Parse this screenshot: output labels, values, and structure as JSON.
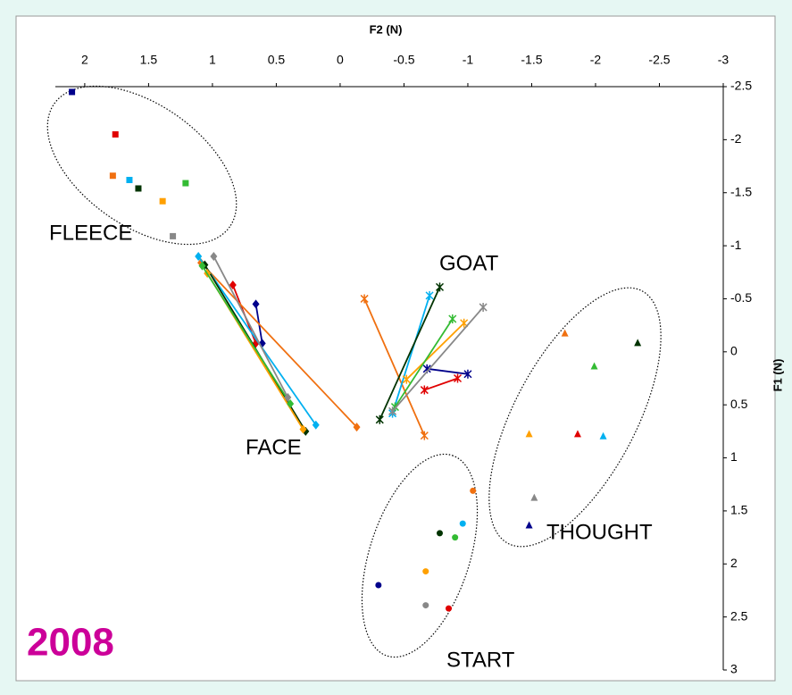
{
  "chart_data": {
    "type": "scatter",
    "x_label": "F2 (N)",
    "y_label": "F1 (N)",
    "xlim": [
      2.23,
      -3
    ],
    "xticks": [
      2,
      1.5,
      1,
      0.5,
      0,
      -0.5,
      -1,
      -1.5,
      -2,
      -2.5,
      -3
    ],
    "ylim": [
      -2.5,
      3
    ],
    "yticks": [
      -2.5,
      -2,
      -1.5,
      -1,
      -0.5,
      0,
      0.5,
      1,
      1.5,
      2,
      2.5,
      3
    ],
    "annotations": [
      "FLEECE",
      "FACE",
      "GOAT",
      "THOUGHT",
      "START",
      "2008"
    ],
    "series": [
      {
        "color": "#00008b",
        "fleece": {
          "x": 2.1,
          "y": -2.45
        },
        "face": {
          "x": [
            0.66,
            0.61
          ],
          "y": [
            -0.45,
            -0.08
          ]
        },
        "goat": {
          "x": [
            -1.0,
            -0.68
          ],
          "y": [
            0.21,
            0.16
          ]
        },
        "thought": {
          "x": -1.48,
          "y": 1.64
        },
        "start": {
          "x": -0.3,
          "y": 2.2
        }
      },
      {
        "color": "#e00000",
        "fleece": {
          "x": 1.76,
          "y": -2.05
        },
        "face": {
          "x": [
            0.84,
            0.66
          ],
          "y": [
            -0.63,
            -0.08
          ]
        },
        "goat": {
          "x": [
            -0.92,
            -0.66
          ],
          "y": [
            0.25,
            0.36
          ]
        },
        "thought": {
          "x": -1.86,
          "y": 0.78
        },
        "start": {
          "x": -0.85,
          "y": 2.42
        }
      },
      {
        "color": "#f07010",
        "fleece": {
          "x": 1.78,
          "y": -1.66
        },
        "face": {
          "x": [
            1.09,
            -0.13
          ],
          "y": [
            -0.84,
            0.71
          ]
        },
        "goat": {
          "x": [
            -0.19,
            -0.66
          ],
          "y": [
            -0.5,
            0.79
          ]
        },
        "thought": {
          "x": -1.76,
          "y": -0.17
        },
        "start": {
          "x": -1.04,
          "y": 1.31
        }
      },
      {
        "color": "#00b0f0",
        "fleece": {
          "x": 1.65,
          "y": -1.62
        },
        "face": {
          "x": [
            1.11,
            0.19
          ],
          "y": [
            -0.9,
            0.69
          ]
        },
        "goat": {
          "x": [
            -0.7,
            -0.41
          ],
          "y": [
            -0.53,
            0.58
          ]
        },
        "thought": {
          "x": -2.06,
          "y": 0.8
        },
        "start": {
          "x": -0.96,
          "y": 1.62
        }
      },
      {
        "color": "#003300",
        "fleece": {
          "x": 1.58,
          "y": -1.54
        },
        "face": {
          "x": [
            1.06,
            0.27
          ],
          "y": [
            -0.82,
            0.75
          ]
        },
        "goat": {
          "x": [
            -0.78,
            -0.31
          ],
          "y": [
            -0.61,
            0.64
          ]
        },
        "thought": {
          "x": -2.33,
          "y": -0.08
        },
        "start": {
          "x": -0.78,
          "y": 1.71
        }
      },
      {
        "color": "#ffa000",
        "fleece": {
          "x": 1.39,
          "y": -1.42
        },
        "face": {
          "x": [
            1.04,
            0.29
          ],
          "y": [
            -0.74,
            0.73
          ]
        },
        "goat": {
          "x": [
            -0.97,
            -0.52
          ],
          "y": [
            -0.27,
            0.26
          ]
        },
        "thought": {
          "x": -1.48,
          "y": 0.78
        },
        "start": {
          "x": -0.67,
          "y": 2.07
        }
      },
      {
        "color": "#33bb33",
        "fleece": {
          "x": 1.21,
          "y": -1.59
        },
        "face": {
          "x": [
            1.08,
            0.39
          ],
          "y": [
            -0.81,
            0.49
          ]
        },
        "goat": {
          "x": [
            -0.88,
            -0.43
          ],
          "y": [
            -0.31,
            0.52
          ]
        },
        "thought": {
          "x": -1.99,
          "y": 0.14
        },
        "start": {
          "x": -0.9,
          "y": 1.75
        }
      },
      {
        "color": "#888888",
        "fleece": {
          "x": 1.31,
          "y": -1.09
        },
        "face": {
          "x": [
            0.99,
            0.41
          ],
          "y": [
            -0.9,
            0.43
          ]
        },
        "goat": {
          "x": [
            -1.12,
            -0.41
          ],
          "y": [
            -0.42,
            0.56
          ]
        },
        "thought": {
          "x": -1.52,
          "y": 1.38
        },
        "start": {
          "x": -0.67,
          "y": 2.39
        }
      }
    ]
  }
}
